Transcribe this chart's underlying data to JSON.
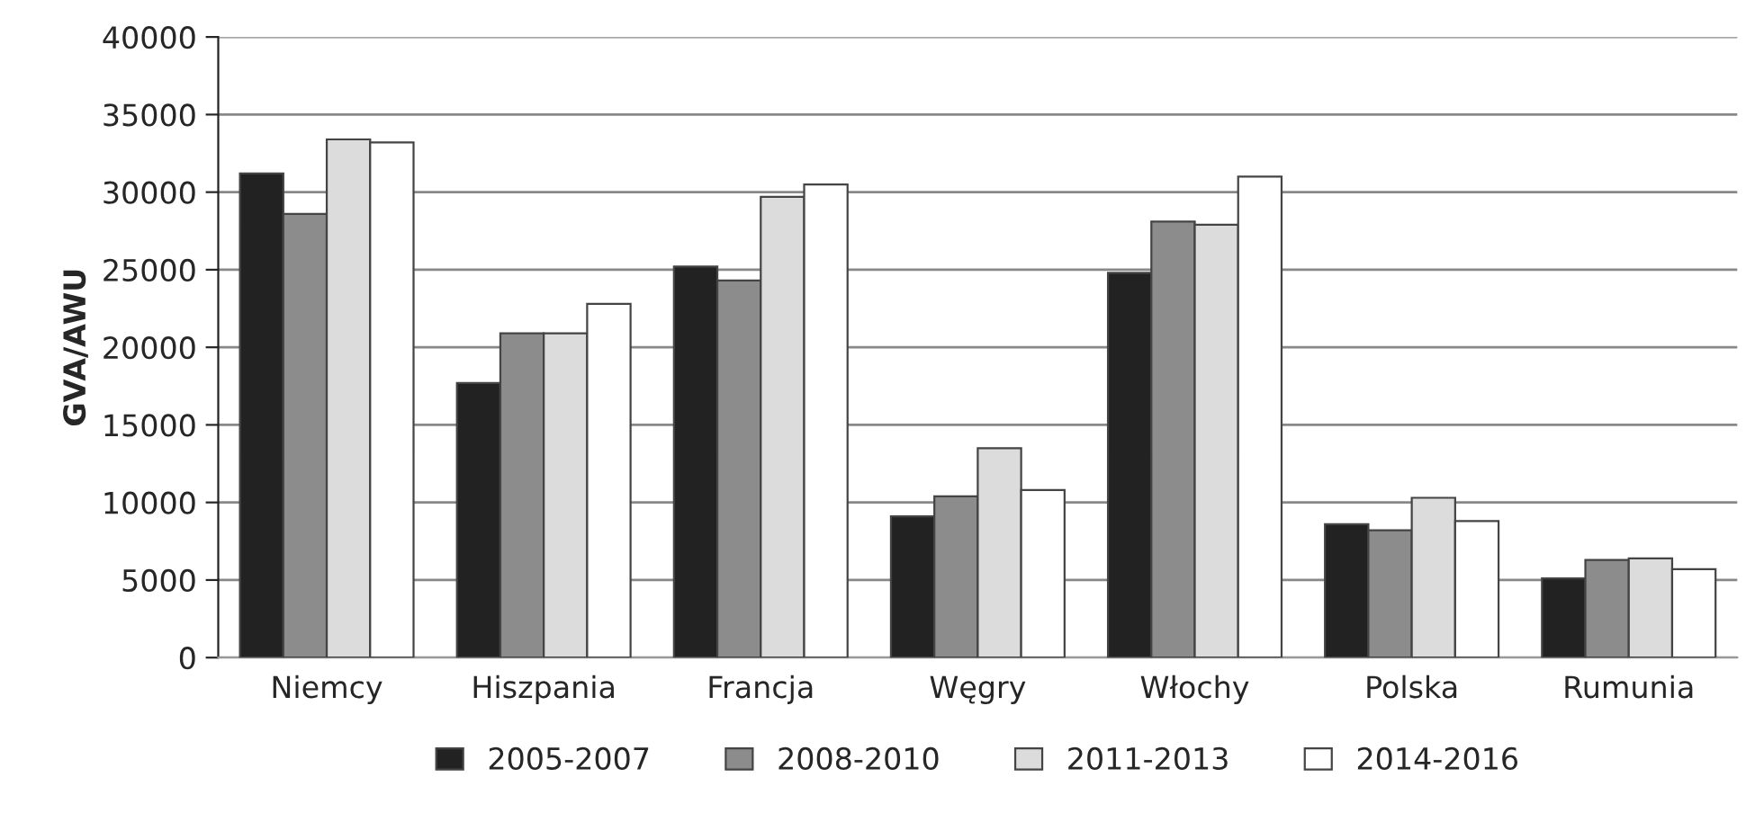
{
  "chart_data": {
    "type": "bar",
    "ylabel": "GVA/AWU",
    "categories": [
      "Niemcy",
      "Hiszpania",
      "Francja",
      "Węgry",
      "Włochy",
      "Polska",
      "Rumunia"
    ],
    "series": [
      {
        "name": "2005-2007",
        "color": "#222222",
        "values": [
          31200,
          17700,
          25200,
          9100,
          24800,
          8600,
          5100
        ]
      },
      {
        "name": "2008-2010",
        "color": "#8c8c8c",
        "values": [
          28600,
          20900,
          24300,
          10400,
          28100,
          8200,
          6300
        ]
      },
      {
        "name": "2011-2013",
        "color": "#dcdcdc",
        "values": [
          33400,
          20900,
          29700,
          13500,
          27900,
          10300,
          6400
        ]
      },
      {
        "name": "2014-2016",
        "color": "#ffffff",
        "values": [
          33200,
          22800,
          30500,
          10800,
          31000,
          8800,
          5700
        ]
      }
    ],
    "ylim": [
      0,
      40000
    ],
    "yticks": [
      0,
      5000,
      10000,
      15000,
      20000,
      25000,
      30000,
      35000,
      40000
    ],
    "grid": "y",
    "legend": "bottom"
  }
}
